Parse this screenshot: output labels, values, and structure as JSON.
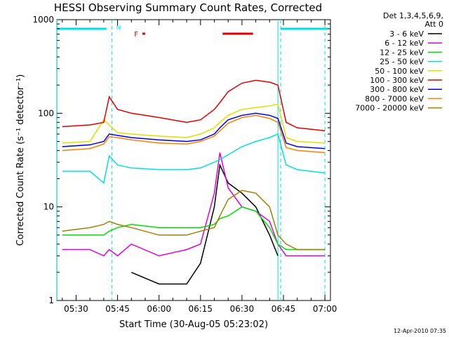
{
  "chart_data": {
    "type": "line",
    "title": "HESSI Observing Summary Count Rates, Corrected",
    "xlabel": "Start Time (30-Aug-05 05:23:02)",
    "ylabel": "Corrected Count Rate (s⁻¹ detector⁻¹)",
    "y_scale": "log",
    "ylim": [
      1,
      1000
    ],
    "xlim": [
      "05:23:02",
      "07:02:00"
    ],
    "x_ticks": [
      "05:30",
      "05:45",
      "06:00",
      "06:15",
      "06:30",
      "06:45",
      "07:00"
    ],
    "y_ticks": [
      "1",
      "10",
      "100",
      "1000"
    ],
    "legend_header": [
      "Det 1,3,4,5,6,9,",
      "Att 0"
    ],
    "legend_position": "right",
    "flags": {
      "N_label": "N",
      "F_label": "F",
      "N_color": "#00e0e0",
      "F_color": "#dd0000",
      "night_segments": [
        [
          "05:23",
          "05:41"
        ],
        [
          "06:44",
          "07:01"
        ]
      ],
      "flare_segments": [
        [
          "05:54",
          "05:55"
        ],
        [
          "06:23",
          "06:34"
        ]
      ],
      "vertical_lines_solid": [
        "05:23",
        "06:43"
      ],
      "vertical_lines_dashed": [
        "05:43",
        "06:44",
        "07:00"
      ]
    },
    "x": [
      "05:25",
      "05:35",
      "05:40",
      "05:42",
      "05:45",
      "05:50",
      "06:00",
      "06:10",
      "06:15",
      "06:20",
      "06:22",
      "06:25",
      "06:30",
      "06:35",
      "06:40",
      "06:43",
      "06:46",
      "06:50",
      "07:00"
    ],
    "series": [
      {
        "name": "3 - 6 keV",
        "color": "#000000",
        "values": [
          null,
          null,
          null,
          null,
          null,
          2,
          1.5,
          1.5,
          2.5,
          10,
          28,
          18,
          14,
          10,
          5,
          3,
          null,
          null,
          null
        ]
      },
      {
        "name": "6 - 12 keV",
        "color": "#e000e0",
        "values": [
          3.5,
          3.5,
          3,
          3.5,
          3,
          4,
          3,
          3.5,
          4,
          14,
          38,
          16,
          10,
          9,
          7,
          4,
          3,
          3,
          3
        ]
      },
      {
        "name": "12 - 25 keV",
        "color": "#00e000",
        "values": [
          5,
          5,
          5,
          5.5,
          6,
          6.5,
          6,
          6,
          6,
          6.5,
          7.5,
          8,
          10,
          9,
          6,
          4,
          3.5,
          3.5,
          3.5
        ]
      },
      {
        "name": "25 - 50 keV",
        "color": "#00e0e0",
        "values": [
          24,
          24,
          18,
          35,
          28,
          26,
          25,
          25,
          26,
          30,
          32,
          36,
          44,
          50,
          55,
          60,
          28,
          25,
          23
        ]
      },
      {
        "name": "50 - 100 keV",
        "color": "#e0e000",
        "values": [
          48,
          50,
          85,
          75,
          62,
          60,
          57,
          55,
          60,
          70,
          80,
          95,
          110,
          115,
          120,
          125,
          55,
          50,
          48
        ]
      },
      {
        "name": "100 - 300 keV",
        "color": "#e00000",
        "values": [
          72,
          75,
          80,
          150,
          110,
          100,
          90,
          80,
          85,
          110,
          130,
          170,
          210,
          225,
          215,
          200,
          80,
          70,
          65
        ]
      },
      {
        "name": "300 - 800 keV",
        "color": "#0000e0",
        "values": [
          44,
          46,
          50,
          60,
          58,
          55,
          52,
          50,
          52,
          60,
          70,
          85,
          95,
          100,
          95,
          88,
          48,
          44,
          42
        ]
      },
      {
        "name": "800 - 7000 keV",
        "color": "#ff8000",
        "values": [
          40,
          42,
          47,
          56,
          55,
          52,
          48,
          47,
          50,
          57,
          65,
          78,
          90,
          95,
          88,
          80,
          43,
          40,
          38
        ]
      },
      {
        "name": "7000 - 20000 keV",
        "color": "#a08000",
        "values": [
          5.5,
          6,
          6.5,
          7,
          6.5,
          6,
          5,
          5,
          5.5,
          6,
          8,
          12,
          15,
          14,
          10,
          5,
          4,
          3.5,
          3.5
        ]
      }
    ]
  },
  "footer": {
    "timestamp": "12-Apr-2010 07:35"
  }
}
